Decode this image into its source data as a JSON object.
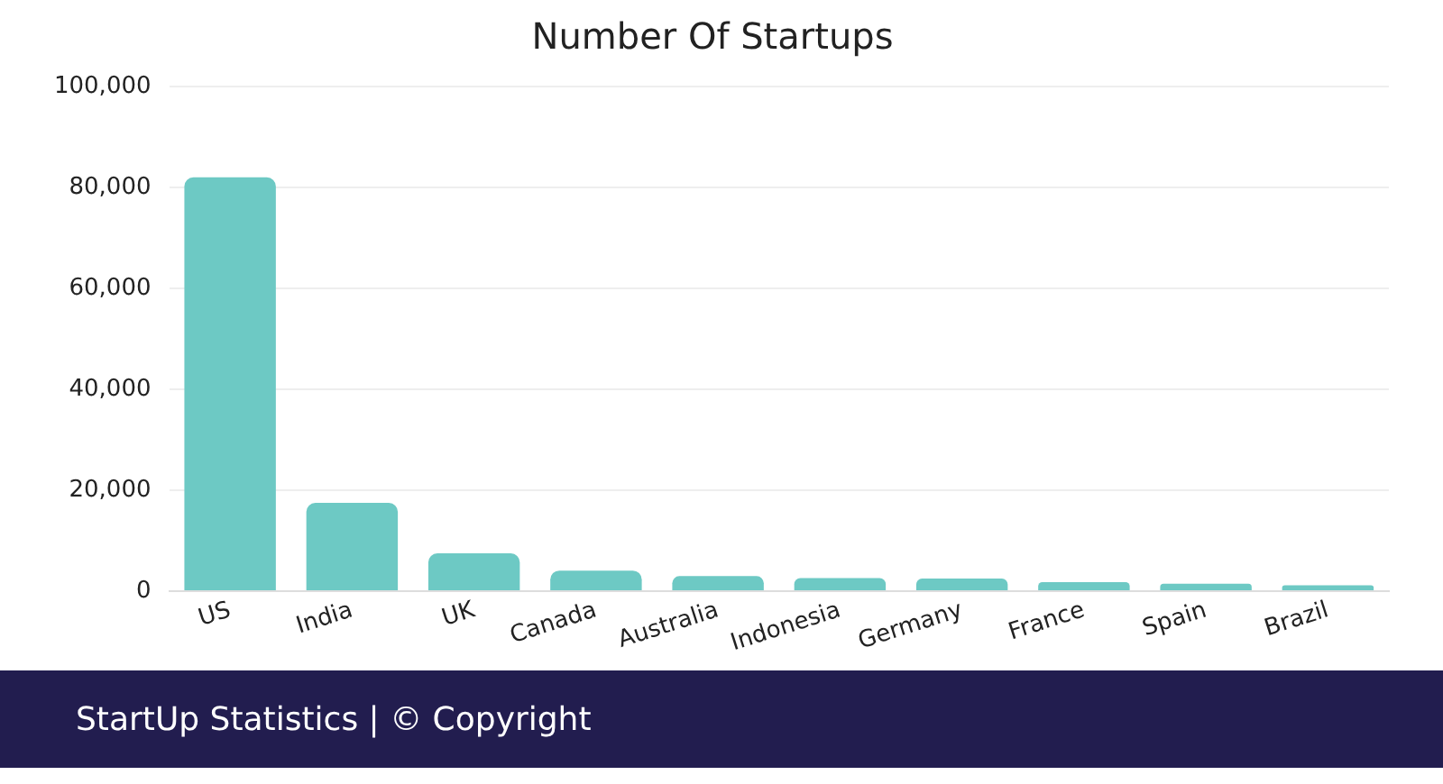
{
  "chart_data": {
    "type": "bar",
    "title": "Number Of Startups",
    "categories": [
      "US",
      "India",
      "UK",
      "Canada",
      "Australia",
      "Indonesia",
      "Germany",
      "France",
      "Spain",
      "Brazil"
    ],
    "values": [
      82000,
      17500,
      7500,
      4100,
      3000,
      2600,
      2500,
      1800,
      1500,
      1200
    ],
    "color": "#6dc9c4",
    "ylim": [
      0,
      100000
    ],
    "yticks": [
      {
        "value": 0,
        "label": "0"
      },
      {
        "value": 20000,
        "label": "20,000"
      },
      {
        "value": 40000,
        "label": "40,000"
      },
      {
        "value": 60000,
        "label": "60,000"
      },
      {
        "value": 80000,
        "label": "80,000"
      },
      {
        "value": 100000,
        "label": "100,000"
      }
    ],
    "grid": "y",
    "annotations": [
      "StartUp Statistics | © Copyright"
    ]
  }
}
